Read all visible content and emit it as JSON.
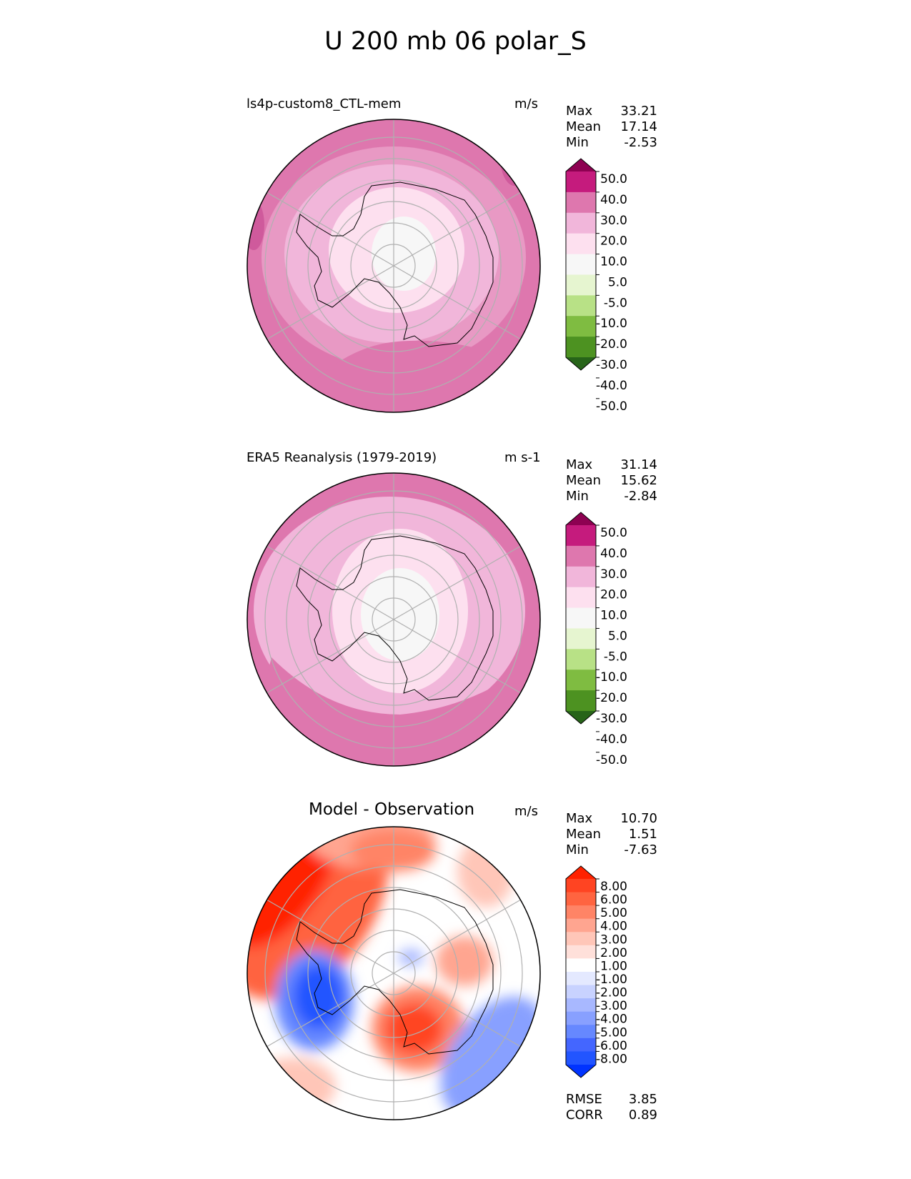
{
  "figure_title": "U 200 mb 06 polar_S",
  "palettes": {
    "model": [
      "#276419",
      "#4d9221",
      "#7fbc41",
      "#b8e186",
      "#e6f5d0",
      "#f7f7f7",
      "#fde0ef",
      "#f1b6da",
      "#de77ae",
      "#c51b7d",
      "#8e0152"
    ],
    "diff": [
      "#0033ff",
      "#2255ff",
      "#4466ff",
      "#6688ff",
      "#88a0ff",
      "#a8b8ff",
      "#c8d2ff",
      "#e4e9ff",
      "#ffffff",
      "#ffe0da",
      "#ffc6b8",
      "#ffa590",
      "#ff8466",
      "#ff6440",
      "#ff4422",
      "#ff2200"
    ]
  },
  "chart_data": [
    {
      "type": "polar_contour_map",
      "title": "ls4p-custom8_CTL-mem",
      "units": "m/s",
      "stats": [
        {
          "label": "Max",
          "value": "33.21"
        },
        {
          "label": "Mean",
          "value": "17.14"
        },
        {
          "label": "Min",
          "value": "-2.53"
        }
      ],
      "colorbar": {
        "levels": [
          -50,
          -40,
          -30,
          -20,
          -10,
          -5,
          5,
          10,
          20,
          30,
          40,
          50
        ],
        "tick_labels": [
          "50.0",
          "40.0",
          "30.0",
          "20.0",
          "10.0",
          "5.0",
          "-5.0",
          "-10.0",
          "-20.0",
          "-30.0",
          "-40.0",
          "-50.0"
        ],
        "extend": "both"
      },
      "field_levels": [
        20,
        10,
        5,
        5,
        10,
        20,
        30,
        40
      ]
    },
    {
      "type": "polar_contour_map",
      "title": "ERA5 Reanalysis (1979-2019)",
      "units": "m s-1",
      "stats": [
        {
          "label": "Max",
          "value": "31.14"
        },
        {
          "label": "Mean",
          "value": "15.62"
        },
        {
          "label": "Min",
          "value": "-2.84"
        }
      ],
      "colorbar": {
        "levels": [
          -50,
          -40,
          -30,
          -20,
          -10,
          -5,
          5,
          10,
          20,
          30,
          40,
          50
        ],
        "tick_labels": [
          "50.0",
          "40.0",
          "30.0",
          "20.0",
          "10.0",
          "5.0",
          "-5.0",
          "-10.0",
          "-20.0",
          "-30.0",
          "-40.0",
          "-50.0"
        ],
        "extend": "both"
      }
    },
    {
      "type": "polar_contour_map",
      "title": "Model - Observation",
      "units": "m/s",
      "stats": [
        {
          "label": "Max",
          "value": "10.70"
        },
        {
          "label": "Mean",
          "value": "1.51"
        },
        {
          "label": "Min",
          "value": "-7.63"
        }
      ],
      "colorbar": {
        "levels": [
          -8,
          -6,
          -5,
          -4,
          -3,
          -2,
          -1,
          1,
          2,
          3,
          4,
          5,
          6,
          8
        ],
        "tick_labels": [
          "8.00",
          "6.00",
          "5.00",
          "4.00",
          "3.00",
          "2.00",
          "1.00",
          "-1.00",
          "-2.00",
          "-3.00",
          "-4.00",
          "-5.00",
          "-6.00",
          "-8.00"
        ],
        "extend": "both"
      },
      "metrics": [
        {
          "label": "RMSE",
          "value": "3.85"
        },
        {
          "label": "CORR",
          "value": "0.89"
        }
      ]
    }
  ]
}
